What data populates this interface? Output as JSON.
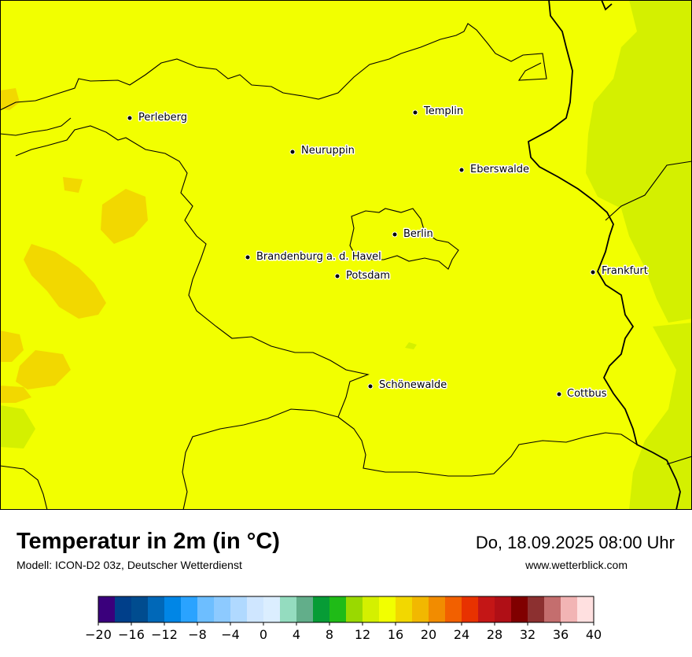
{
  "header": {
    "title": "Temperatur in 2m (in °C)",
    "model": "Modell: ICON-D2 03z, Deutscher Wetterdienst",
    "datetime": "Do, 18.09.2025 08:00 Uhr",
    "website": "www.wetterblick.com"
  },
  "map": {
    "cities": [
      {
        "name": "Perleberg"
      },
      {
        "name": "Templin"
      },
      {
        "name": "Neuruppin"
      },
      {
        "name": "Eberswalde"
      },
      {
        "name": "Berlin"
      },
      {
        "name": "Brandenburg a. d. Havel"
      },
      {
        "name": "Potsdam"
      },
      {
        "name": "Frankfurt"
      },
      {
        "name": "Schönewalde"
      },
      {
        "name": "Cottbus"
      }
    ],
    "colors": {
      "background_field": "#f2ff00",
      "warm_patches": "#f2d800",
      "cool_patches": "#d4f000",
      "borders": "#000000"
    }
  },
  "legend": {
    "ticks": [
      "−20",
      "−16",
      "−12",
      "−8",
      "−4",
      "0",
      "4",
      "8",
      "12",
      "16",
      "20",
      "24",
      "28",
      "32",
      "36",
      "40"
    ],
    "colors": [
      "#3a007c",
      "#003f8a",
      "#004c8f",
      "#0068b8",
      "#0086e6",
      "#2aa3ff",
      "#6dbeff",
      "#8dcaff",
      "#b0d9ff",
      "#cfe6ff",
      "#dbeeff",
      "#94dcbf",
      "#62ae8a",
      "#079c36",
      "#1fbb17",
      "#9ad900",
      "#d4f000",
      "#f2ff00",
      "#f2d800",
      "#f2b800",
      "#f28c00",
      "#f26000",
      "#e83200",
      "#c41616",
      "#b00f16",
      "#800000",
      "#8c3030",
      "#c46e6e",
      "#f2b4b4",
      "#ffe0e0"
    ]
  }
}
